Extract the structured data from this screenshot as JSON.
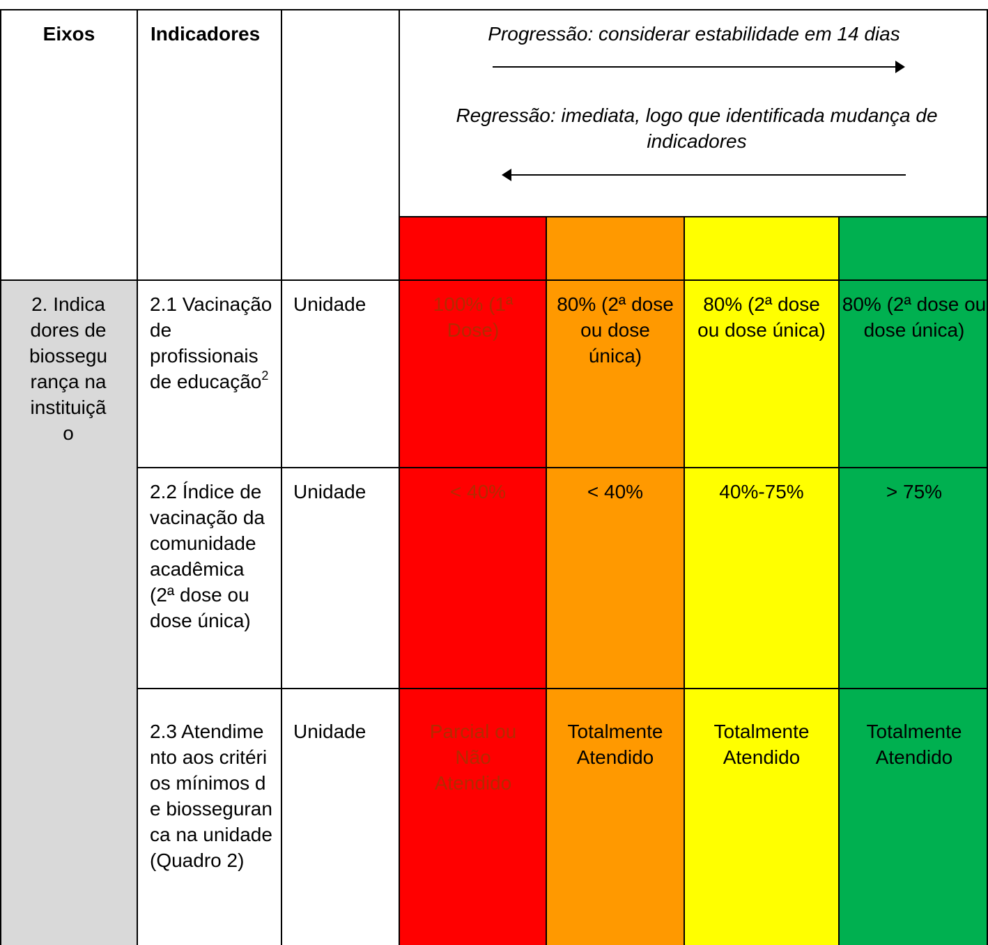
{
  "header": {
    "col_eixos": "Eixos",
    "col_indicadores": "Indicadores",
    "progression": "Progressão: considerar estabilidade em 14 dias",
    "regression": "Regressão: imediata, logo que identificada mudança de indicadores"
  },
  "level_colors": [
    "#ff0000",
    "#ff9900",
    "#ffff00",
    "#00b050"
  ],
  "axis": {
    "label": "2. Indicadores de biossegurança na instituição"
  },
  "rows": [
    {
      "indicator": "2.1 Vacinação de profissionais de educação",
      "footnote": "2",
      "unit": "Unidade",
      "levels": [
        "100% (1ª Dose)",
        "80% (2ª dose ou dose única)",
        "80% (2ª dose ou dose única)",
        "80% (2ª dose ou dose única)"
      ]
    },
    {
      "indicator": "2.2 Índice de vacinação da comunidade acadêmica (2ª dose ou dose única)",
      "unit": "Unidade",
      "levels": [
        "< 40%",
        "< 40%",
        "40%-75%",
        "> 75%"
      ]
    },
    {
      "indicator": "2.3 Atendimento aos critérios mínimos de biosseguranca na unidade (Quadro 2)",
      "unit": "Unidade",
      "levels": [
        "Parcial ou Não Atendido",
        "Totalmente Atendido",
        "Totalmente Atendido",
        "Totalmente Atendido"
      ]
    }
  ]
}
